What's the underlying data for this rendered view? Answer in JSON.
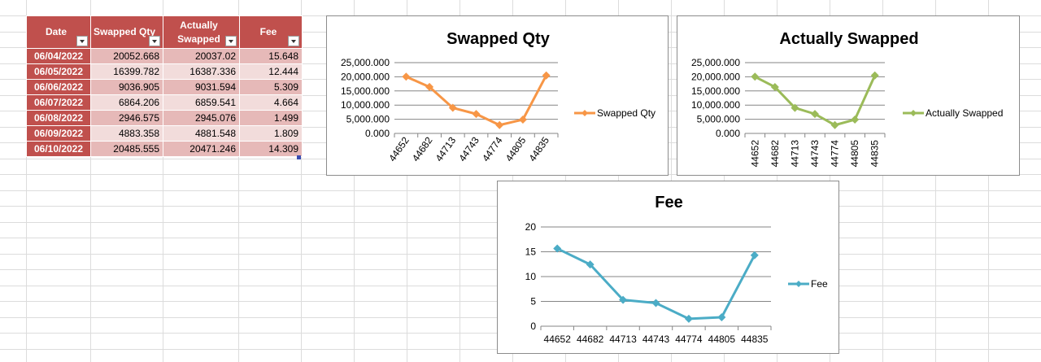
{
  "table": {
    "headers": [
      {
        "label_line1": "Date",
        "label_line2": ""
      },
      {
        "label_line1": "Swapped Qty",
        "label_line2": ""
      },
      {
        "label_line1": "Actually",
        "label_line2": "Swapped"
      },
      {
        "label_line1": "Fee",
        "label_line2": ""
      }
    ],
    "rows": [
      {
        "date": "06/04/2022",
        "swapped_qty": "20052.668",
        "actually_swapped": "20037.02",
        "fee": "15.648"
      },
      {
        "date": "06/05/2022",
        "swapped_qty": "16399.782",
        "actually_swapped": "16387.336",
        "fee": "12.444"
      },
      {
        "date": "06/06/2022",
        "swapped_qty": "9036.905",
        "actually_swapped": "9031.594",
        "fee": "5.309"
      },
      {
        "date": "06/07/2022",
        "swapped_qty": "6864.206",
        "actually_swapped": "6859.541",
        "fee": "4.664"
      },
      {
        "date": "06/08/2022",
        "swapped_qty": "2946.575",
        "actually_swapped": "2945.076",
        "fee": "1.499"
      },
      {
        "date": "06/09/2022",
        "swapped_qty": "4883.358",
        "actually_swapped": "4881.548",
        "fee": "1.809"
      },
      {
        "date": "06/10/2022",
        "swapped_qty": "20485.555",
        "actually_swapped": "20471.246",
        "fee": "14.309"
      }
    ]
  },
  "colors": {
    "header_red": "#c0504d",
    "row_dark": "#e6b9b8",
    "row_light": "#f2dcdb",
    "swapped_series": "#f79646",
    "actually_series": "#9bbb59",
    "fee_series": "#4bacc6"
  },
  "chart_data": [
    {
      "type": "line",
      "title": "Swapped Qty",
      "categories": [
        "44652",
        "44682",
        "44713",
        "44743",
        "44774",
        "44805",
        "44835"
      ],
      "series": [
        {
          "name": "Swapped Qty",
          "values": [
            20052.668,
            16399.782,
            9036.905,
            6864.206,
            2946.575,
            4883.358,
            20485.555
          ]
        }
      ],
      "yticks": [
        "0.000",
        "5,000.000",
        "10,000.000",
        "15,000.000",
        "20,000.000",
        "25,000.000"
      ],
      "ylim": [
        0,
        25000
      ],
      "grid": true,
      "legend": "right",
      "xlabel_rotation": "vertical",
      "color": "#f79646"
    },
    {
      "type": "line",
      "title": "Actually Swapped",
      "categories": [
        "44652",
        "44682",
        "44713",
        "44743",
        "44774",
        "44805",
        "44835"
      ],
      "series": [
        {
          "name": "Actually Swapped",
          "values": [
            20037.02,
            16387.336,
            9031.594,
            6859.541,
            2945.076,
            4881.548,
            20471.246
          ]
        }
      ],
      "yticks": [
        "0.000",
        "5,000.000",
        "10,000.000",
        "15,000.000",
        "20,000.000",
        "25,000.000"
      ],
      "ylim": [
        0,
        25000
      ],
      "grid": true,
      "legend": "right",
      "xlabel_rotation": "vertical",
      "color": "#9bbb59"
    },
    {
      "type": "line",
      "title": "Fee",
      "categories": [
        "44652",
        "44682",
        "44713",
        "44743",
        "44774",
        "44805",
        "44835"
      ],
      "series": [
        {
          "name": "Fee",
          "values": [
            15.648,
            12.444,
            5.309,
            4.664,
            1.499,
            1.809,
            14.309
          ]
        }
      ],
      "yticks": [
        "0",
        "5",
        "10",
        "15",
        "20"
      ],
      "ylim": [
        0,
        20
      ],
      "grid": true,
      "legend": "right",
      "xlabel_rotation": "horizontal",
      "color": "#4bacc6"
    }
  ]
}
